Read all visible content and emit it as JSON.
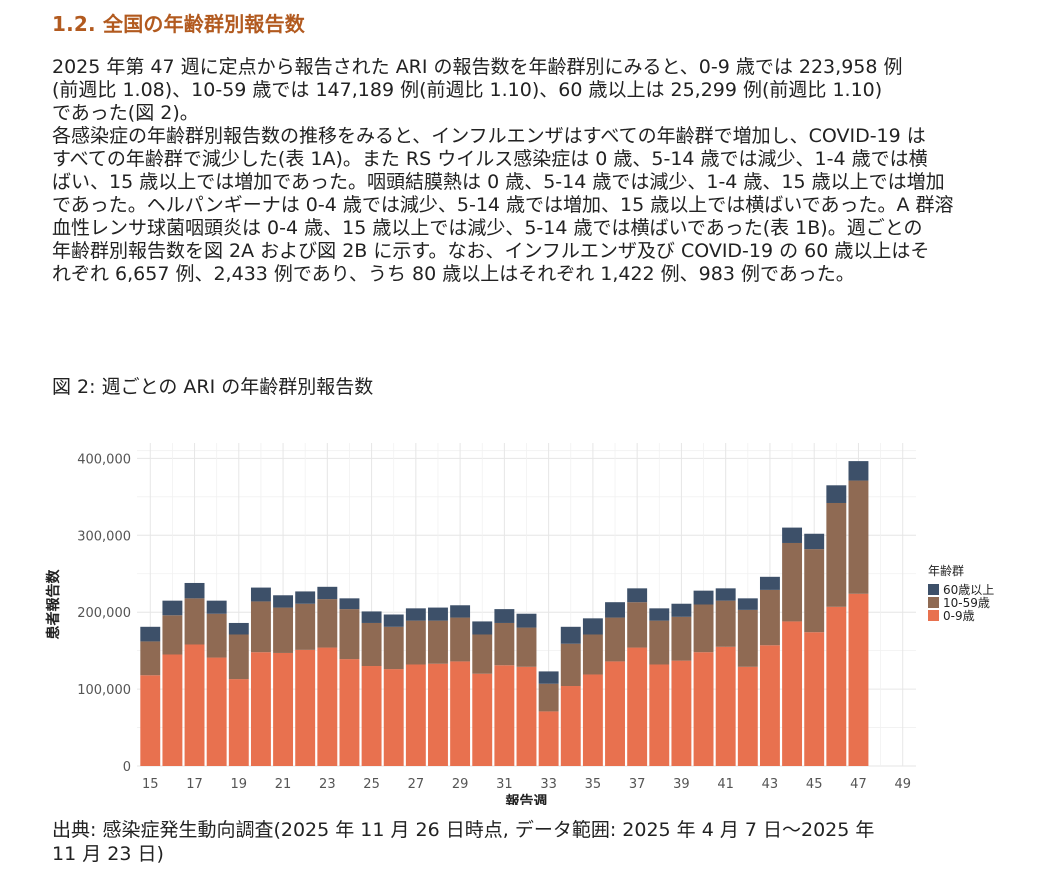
{
  "section": {
    "title": "1.2. 全国の年齢群別報告数"
  },
  "paragraphs": [
    "2025 年第 47 週に定点から報告された ARI の報告数を年齢群別にみると、0-9 歳では 223,958 例\n(前週比 1.08)、10-59 歳では 147,189 例(前週比 1.10)、60 歳以上は 25,299 例(前週比 1.10)\nであった(図 2)。",
    "各感染症の年齢群別報告数の推移をみると、インフルエンザはすべての年齢群で増加し、COVID-19 は\nすべての年齢群で減少した(表 1A)。また RS ウイルス感染症は 0 歳、5-14 歳では減少、1-4 歳では横\nばい、15 歳以上では増加であった。咽頭結膜熱は 0 歳、5-14 歳では減少、1-4 歳、15 歳以上では増加\nであった。ヘルパンギーナは 0-4 歳では減少、5-14 歳では増加、15 歳以上では横ばいであった。A 群溶\n血性レンサ球菌咽頭炎は 0-4 歳、15 歳以上では減少、5-14 歳では横ばいであった(表 1B)。週ごとの\n年齢群別報告数を図 2A および図 2B に示す。なお、インフルエンザ及び COVID-19 の 60 歳以上はそ\nれぞれ 6,657 例、2,433 例であり、うち 80 歳以上はそれぞれ 1,422 例、983 例であった。"
  ],
  "figure": {
    "caption": "図 2: 週ごとの ARI の年齢群別報告数"
  },
  "source": {
    "text": "出典: 感染症発生動向調査(2025 年 11 月 26 日時点, データ範囲: 2025 年 4 月 7 日～2025 年\n11 月 23 日)"
  },
  "chart_data": {
    "type": "bar",
    "stacked": true,
    "xlabel": "報告週",
    "ylabel": "患者報告数",
    "x": [
      15,
      16,
      17,
      18,
      19,
      20,
      21,
      22,
      23,
      24,
      25,
      26,
      27,
      28,
      29,
      30,
      31,
      32,
      33,
      34,
      35,
      36,
      37,
      38,
      39,
      40,
      41,
      42,
      43,
      44,
      45,
      46,
      47
    ],
    "x_ticks": [
      15,
      17,
      19,
      21,
      23,
      25,
      27,
      29,
      31,
      33,
      35,
      37,
      39,
      41,
      43,
      45,
      47,
      49
    ],
    "xlim": [
      14.4,
      49.6
    ],
    "y_ticks": [
      0,
      100000,
      200000,
      300000,
      400000
    ],
    "y_tick_labels": [
      "0",
      "100,000",
      "200,000",
      "300,000",
      "400,000"
    ],
    "ylim": [
      0,
      420000
    ],
    "grid": true,
    "legend": {
      "title": "年齢群",
      "position": "right"
    },
    "series": [
      {
        "name": "0-9歳",
        "color": "#e8714f",
        "values": [
          118000,
          145000,
          158000,
          141000,
          113000,
          148000,
          147000,
          151000,
          154000,
          139000,
          130000,
          126000,
          132000,
          133000,
          136000,
          120000,
          131000,
          129000,
          71000,
          104000,
          119000,
          136000,
          154000,
          132000,
          137000,
          148000,
          155000,
          129000,
          157000,
          188000,
          174000,
          207000,
          223958
        ]
      },
      {
        "name": "10-59歳",
        "color": "#8f6a53",
        "values": [
          44000,
          51000,
          60000,
          57000,
          58000,
          66000,
          59000,
          60000,
          63000,
          65000,
          56000,
          55000,
          57000,
          56000,
          57000,
          51000,
          55000,
          51000,
          36000,
          55000,
          52000,
          57000,
          59000,
          57000,
          57000,
          62000,
          60000,
          74000,
          72000,
          102000,
          108000,
          135000,
          147189
        ]
      },
      {
        "name": "60歳以上",
        "color": "#3d5069",
        "values": [
          19000,
          19000,
          20000,
          17000,
          15000,
          18000,
          16000,
          16000,
          16000,
          14000,
          15000,
          16000,
          16000,
          17000,
          16000,
          17000,
          18000,
          18000,
          16000,
          22000,
          21000,
          20000,
          18000,
          16000,
          17000,
          18000,
          16000,
          15000,
          17000,
          20000,
          20000,
          23000,
          25299
        ]
      }
    ]
  }
}
